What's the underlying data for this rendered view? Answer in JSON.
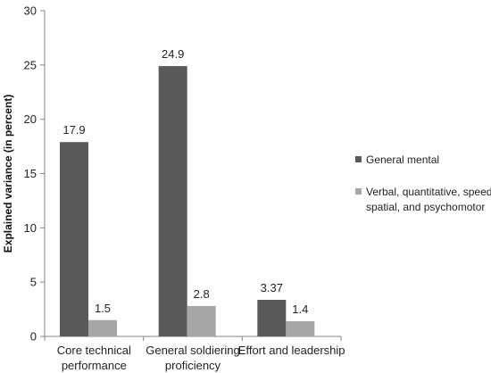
{
  "chart_data": {
    "type": "bar",
    "categories": [
      [
        "Core technical",
        "performance"
      ],
      [
        "General soldiering",
        "proficiency"
      ],
      [
        "Effort and leadership"
      ]
    ],
    "series": [
      {
        "name": "General mental",
        "values": [
          17.9,
          24.9,
          3.37
        ],
        "labels": [
          "17.9",
          "24.9",
          "3.37"
        ],
        "color": "#595959"
      },
      {
        "name": "Verbal, quantitative, speed, spatial, and psychomotor",
        "legend_lines": [
          "Verbal, quantitative, speed,",
          "spatial, and psychomotor"
        ],
        "values": [
          1.5,
          2.8,
          1.4
        ],
        "labels": [
          "1.5",
          "2.8",
          "1.4"
        ],
        "color": "#a6a6a6"
      }
    ],
    "ylabel": "Explained variance (in percent)",
    "ylim": [
      0,
      30
    ],
    "yticks": [
      0,
      5,
      10,
      15,
      20,
      25,
      30
    ],
    "grid": false,
    "legend_position": "right"
  }
}
